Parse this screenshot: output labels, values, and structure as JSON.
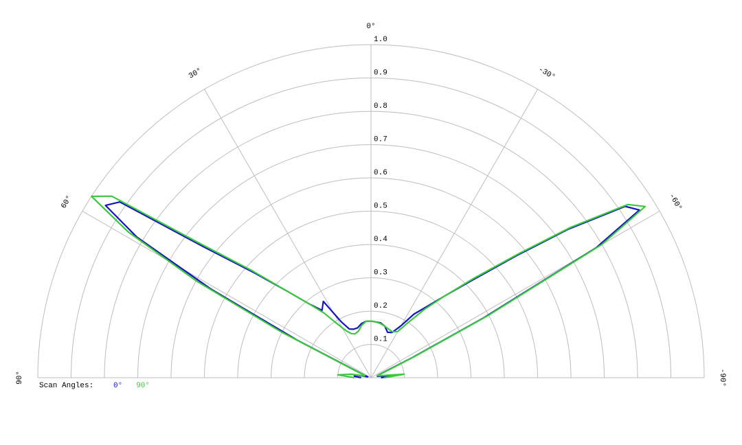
{
  "chart_data": {
    "type": "polar",
    "x": [
      90,
      85,
      80,
      75,
      70,
      66,
      63,
      61,
      59,
      57,
      55,
      52,
      48,
      44,
      40,
      36,
      32,
      28,
      24,
      20,
      15,
      10,
      5,
      0,
      -5,
      -10,
      -15,
      -20,
      -25,
      -30,
      -34,
      -38,
      -42,
      -46,
      -50,
      -53,
      -56,
      -58,
      -60,
      -62,
      -64,
      -67,
      -72,
      -78,
      -84,
      -90
    ],
    "series": [
      {
        "name": "0°",
        "color": "#1414c4",
        "values": [
          0.03,
          0.05,
          0.05,
          0.01,
          0.02,
          0.04,
          0.25,
          0.55,
          0.82,
          0.95,
          0.92,
          0.64,
          0.47,
          0.36,
          0.29,
          0.25,
          0.27,
          0.19,
          0.16,
          0.155,
          0.155,
          0.165,
          0.17,
          0.17,
          0.168,
          0.167,
          0.16,
          0.145,
          0.15,
          0.18,
          0.23,
          0.27,
          0.33,
          0.42,
          0.57,
          0.74,
          0.92,
          0.95,
          0.78,
          0.38,
          0.14,
          0.04,
          0.02,
          0.02,
          0.08,
          0.03
        ]
      },
      {
        "name": "90°",
        "color": "#3cc83c",
        "values": [
          0.05,
          0.1,
          0.06,
          0.02,
          0.02,
          0.05,
          0.3,
          0.6,
          0.85,
          1.0,
          0.95,
          0.66,
          0.48,
          0.36,
          0.29,
          0.24,
          0.19,
          0.16,
          0.145,
          0.14,
          0.145,
          0.16,
          0.17,
          0.17,
          0.168,
          0.165,
          0.16,
          0.155,
          0.152,
          0.16,
          0.2,
          0.26,
          0.33,
          0.43,
          0.58,
          0.75,
          0.93,
          0.97,
          0.8,
          0.4,
          0.15,
          0.05,
          0.02,
          0.03,
          0.1,
          0.04
        ]
      }
    ],
    "rlim": [
      0,
      1
    ],
    "rticks": [
      0.1,
      0.2,
      0.3,
      0.4,
      0.5,
      0.6,
      0.7,
      0.8,
      0.9,
      {
        "value": 1,
        "label": "1.0"
      }
    ],
    "angle_ticks": [
      {
        "value": 90,
        "label": "90°"
      },
      {
        "value": 60,
        "label": "60°"
      },
      {
        "value": 30,
        "label": "30°"
      },
      {
        "value": 0,
        "label": "0°"
      },
      {
        "value": -30,
        "label": "-30°"
      },
      {
        "value": -60,
        "label": "-60°"
      },
      {
        "value": -90,
        "label": "-90°"
      }
    ],
    "legend_title": "Scan Angles:"
  }
}
